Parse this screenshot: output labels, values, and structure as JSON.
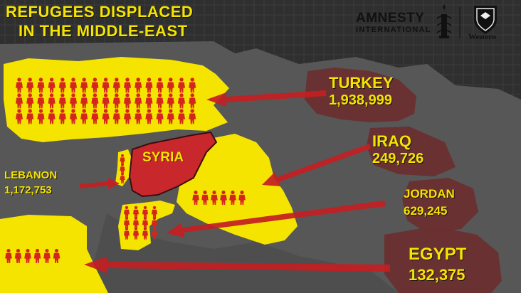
{
  "title": {
    "line1": "REFUGEES DISPLACED",
    "line2": "IN THE MIDDLE-EAST"
  },
  "logos": {
    "amnesty_line1": "AMNESTY",
    "amnesty_line2": "INTERNATIONAL",
    "university": "Western",
    "amnesty_icon": "candle-barbed-wire-icon",
    "university_icon": "crest-shield-icon"
  },
  "origin_label": "SYRIA",
  "destinations": [
    {
      "name": "TURKEY",
      "value": "1,938,999"
    },
    {
      "name": "IRAQ",
      "value": "249,726"
    },
    {
      "name": "LEBANON",
      "value": "1,172,753"
    },
    {
      "name": "JORDAN",
      "value": "629,245"
    },
    {
      "name": "EGYPT",
      "value": "132,375"
    }
  ],
  "colors": {
    "background": "#2f2f2f",
    "land": "#5a5a5a",
    "highlight_yellow": "#f5e400",
    "syria_red": "#c8282c",
    "arrow_red": "#c41f22",
    "figure_red": "#d5261d"
  }
}
